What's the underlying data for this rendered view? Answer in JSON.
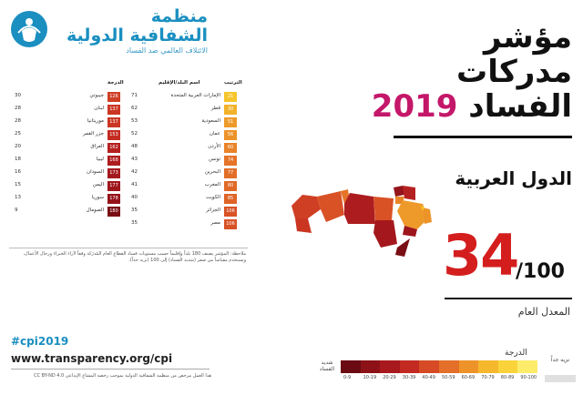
{
  "logo": {
    "line1": "منظمة",
    "line2": "الشفافية الدولية",
    "line3": "الائتلاف العالمي ضد الفساد"
  },
  "title": {
    "line1": "مؤشر",
    "line2": "مدركات",
    "line3_word": "الفساد",
    "year": "2019"
  },
  "region": "الدول العربية",
  "score": {
    "value": "34",
    "max": "/100",
    "label": "المعدل العام"
  },
  "table": {
    "headers": {
      "rank": "الترتيب",
      "country": "اسم البلد/الإقليم",
      "score": "الدرجة"
    },
    "right_rows": [
      {
        "country": "الإمارات العربية المتحدة",
        "score": "71",
        "rank": "21",
        "color": "#f5c52b"
      },
      {
        "country": "قطر",
        "score": "62",
        "rank": "30",
        "color": "#f2b12a"
      },
      {
        "country": "السعودية",
        "score": "53",
        "rank": "51",
        "color": "#ee9a2a"
      },
      {
        "country": "عمان",
        "score": "52",
        "rank": "56",
        "color": "#ec932a"
      },
      {
        "country": "الأردن",
        "score": "48",
        "rank": "60",
        "color": "#e98429"
      },
      {
        "country": "تونس",
        "score": "43",
        "rank": "74",
        "color": "#e57328"
      },
      {
        "country": "البحرين",
        "score": "42",
        "rank": "77",
        "color": "#e26e28"
      },
      {
        "country": "المغرب",
        "score": "41",
        "rank": "80",
        "color": "#e06927"
      },
      {
        "country": "الكويت",
        "score": "40",
        "rank": "85",
        "color": "#de6427"
      },
      {
        "country": "الجزائر",
        "score": "35",
        "rank": "106",
        "color": "#d85226"
      },
      {
        "country": "مصر",
        "score": "35",
        "rank": "106",
        "color": "#d85226"
      }
    ],
    "left_rows": [
      {
        "country": "جيبوتي",
        "score": "30",
        "rank": "126",
        "color": "#cf3f24"
      },
      {
        "country": "لبنان",
        "score": "28",
        "rank": "137",
        "color": "#cb3623"
      },
      {
        "country": "موريتانيا",
        "score": "28",
        "rank": "137",
        "color": "#cb3623"
      },
      {
        "country": "جزر القمر",
        "score": "25",
        "rank": "153",
        "color": "#c42c22"
      },
      {
        "country": "العراق",
        "score": "20",
        "rank": "162",
        "color": "#b52020"
      },
      {
        "country": "ليبيا",
        "score": "18",
        "rank": "168",
        "color": "#ad1c1f"
      },
      {
        "country": "السودان",
        "score": "16",
        "rank": "173",
        "color": "#a4181d"
      },
      {
        "country": "اليمن",
        "score": "15",
        "rank": "177",
        "color": "#9e161c"
      },
      {
        "country": "سوريا",
        "score": "13",
        "rank": "178",
        "color": "#94131a"
      },
      {
        "country": "الصومال",
        "score": "9",
        "rank": "180",
        "color": "#7a0e15"
      }
    ],
    "note": "ملاحظة: المؤشر يصنف 180 بلداً وإقليماً حسب مستويات فساد القطاع العام المُدرَكة وفقاً لآراء الخبراء ورجال الأعمال، ويستخدم مقياساً من صفر (شديد الفساد) إلى 100 (نزيه جداً)."
  },
  "footer": {
    "hashtag": "#cpi2019",
    "url": "www.transparency.org/cpi",
    "footnote": "هذا العمل مرخص من منظمة الشفافية الدولية بموجب رخصة المشاع الإبداعي CC BY-ND 4.0"
  },
  "legend": {
    "title": "الدرجة",
    "high_label": "نزيه جداً",
    "low_label": "شديد الفساد",
    "ticks": [
      "0-9",
      "10-19",
      "20-29",
      "30-39",
      "40-49",
      "50-59",
      "60-69",
      "70-79",
      "80-89",
      "90-100"
    ],
    "colors": [
      "#6b0a12",
      "#8d1218",
      "#a8191d",
      "#c32a22",
      "#d64b25",
      "#e46f28",
      "#ee932a",
      "#f5b82c",
      "#fad33a",
      "#fcec6a"
    ]
  }
}
